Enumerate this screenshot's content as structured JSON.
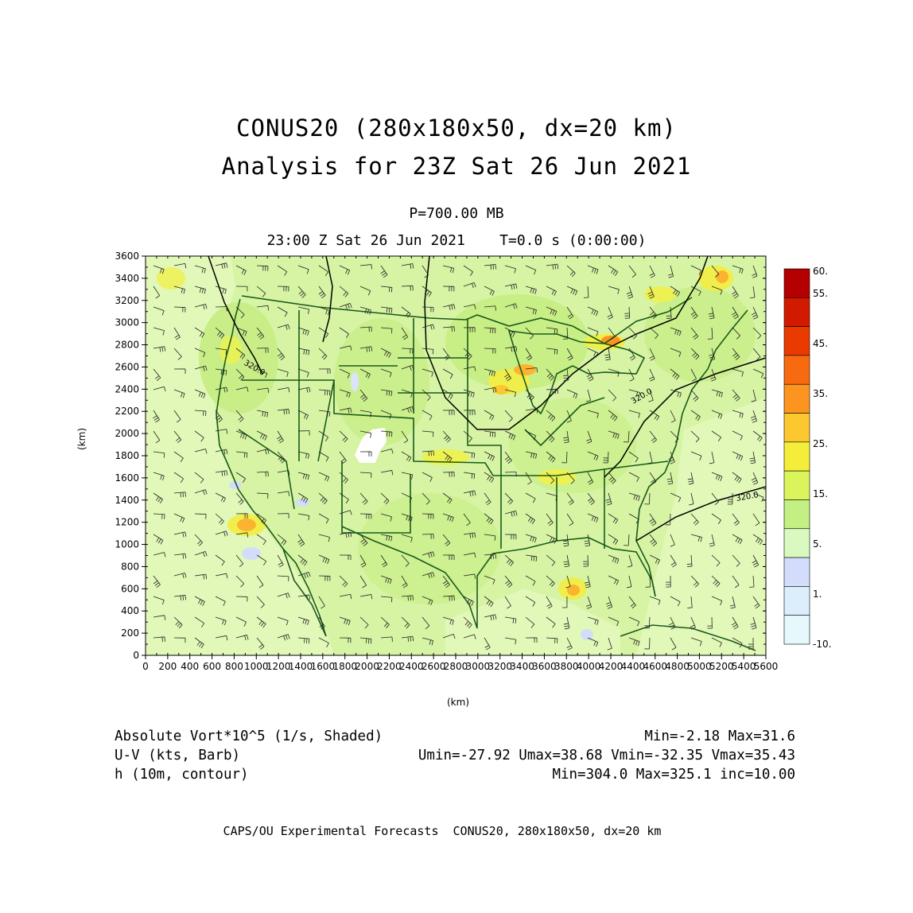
{
  "title_line1": "CONUS20 (280x180x50, dx=20 km)",
  "title_line2": "Analysis for 23Z Sat 26 Jun 2021",
  "pressure_label": "P=700.00 MB",
  "time_label": "23:00 Z Sat 26 Jun 2021    T=0.0 s (0:00:00)",
  "axes": {
    "xlabel": "(km)",
    "ylabel": "(km)",
    "xlim": [
      0,
      5600
    ],
    "ylim": [
      0,
      3600
    ],
    "xticks": [
      0,
      200,
      400,
      600,
      800,
      1000,
      1200,
      1400,
      1600,
      1800,
      2000,
      2200,
      2400,
      2600,
      2800,
      3000,
      3200,
      3400,
      3600,
      3800,
      4000,
      4200,
      4400,
      4600,
      4800,
      5000,
      5200,
      5400,
      5600
    ],
    "yticks": [
      0,
      200,
      400,
      600,
      800,
      1000,
      1200,
      1400,
      1600,
      1800,
      2000,
      2200,
      2400,
      2600,
      2800,
      3000,
      3200,
      3400,
      3600
    ]
  },
  "colorbar": {
    "labels": [
      "60.",
      "55.",
      "45.",
      "35.",
      "25.",
      "15.",
      "5.",
      "1.",
      "-10."
    ],
    "colors": [
      "#b40000",
      "#d21a00",
      "#ea3a00",
      "#f86a10",
      "#fc9420",
      "#fcc830",
      "#f4ee3a",
      "#dcf45c",
      "#c2f082",
      "#d8fac0",
      "#d4dcfc",
      "#dceefc",
      "#e6f8fc"
    ]
  },
  "contour_labels": [
    "320.0",
    "320.0",
    "320.0"
  ],
  "legend": {
    "row1_left": "Absolute Vort*10^5 (1/s, Shaded)",
    "row1_right": "Min=-2.18 Max=31.6",
    "row2_left": "U-V (kts, Barb)",
    "row2_right": "Umin=-27.92 Umax=38.68 Vmin=-32.35 Vmax=35.43",
    "row3_left": "h (10m, contour)",
    "row3_right": "Min=304.0 Max=325.1 inc=10.00"
  },
  "footer": "CAPS/OU Experimental Forecasts  CONUS20, 280x180x50, dx=20 km",
  "colors": {
    "base_field": "#d6f4a4",
    "light_field": "#e2f8b8",
    "coast": "#1a5a1a",
    "outline": "#000000"
  }
}
